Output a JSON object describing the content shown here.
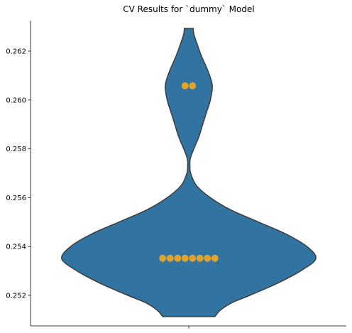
{
  "chart_data": {
    "type": "violin",
    "title": "CV Results for `dummy` Model",
    "xlabel": "",
    "ylabel": "",
    "ylim": [
      0.25075,
      0.26325
    ],
    "y_ticks": [
      0.252,
      0.254,
      0.256,
      0.258,
      0.26,
      0.262
    ],
    "y_tick_labels": [
      "0.252",
      "0.254",
      "0.256",
      "0.258",
      "0.260",
      "0.262"
    ],
    "x_ticks": [
      ""
    ],
    "grid": false,
    "legend": "none",
    "colors": {
      "violin_fill": "#3274a1",
      "violin_edge": "#3d3d3d",
      "point": "#e0a32c"
    },
    "violin": {
      "data_min": 0.25113,
      "data_max": 0.26293,
      "density_profile": [
        [
          0.25113,
          0.205
        ],
        [
          0.2514,
          0.25
        ],
        [
          0.2517,
          0.34
        ],
        [
          0.252,
          0.48
        ],
        [
          0.2525,
          0.7
        ],
        [
          0.253,
          0.88
        ],
        [
          0.2535,
          1.0
        ],
        [
          0.254,
          0.93
        ],
        [
          0.2545,
          0.77
        ],
        [
          0.255,
          0.55
        ],
        [
          0.2555,
          0.33
        ],
        [
          0.256,
          0.17
        ],
        [
          0.2565,
          0.06
        ],
        [
          0.257,
          0.015
        ],
        [
          0.2573,
          0.009
        ],
        [
          0.2576,
          0.012
        ],
        [
          0.258,
          0.04
        ],
        [
          0.2585,
          0.08
        ],
        [
          0.259,
          0.11
        ],
        [
          0.2595,
          0.14
        ],
        [
          0.26,
          0.17
        ],
        [
          0.2606,
          0.185
        ],
        [
          0.2612,
          0.15
        ],
        [
          0.2618,
          0.1
        ],
        [
          0.2623,
          0.065
        ],
        [
          0.2627,
          0.04
        ],
        [
          0.26293,
          0.035
        ]
      ]
    },
    "points": [
      0.26058,
      0.26058,
      0.25352,
      0.25352,
      0.25352,
      0.25352,
      0.25352,
      0.25352,
      0.25352,
      0.25352
    ]
  }
}
